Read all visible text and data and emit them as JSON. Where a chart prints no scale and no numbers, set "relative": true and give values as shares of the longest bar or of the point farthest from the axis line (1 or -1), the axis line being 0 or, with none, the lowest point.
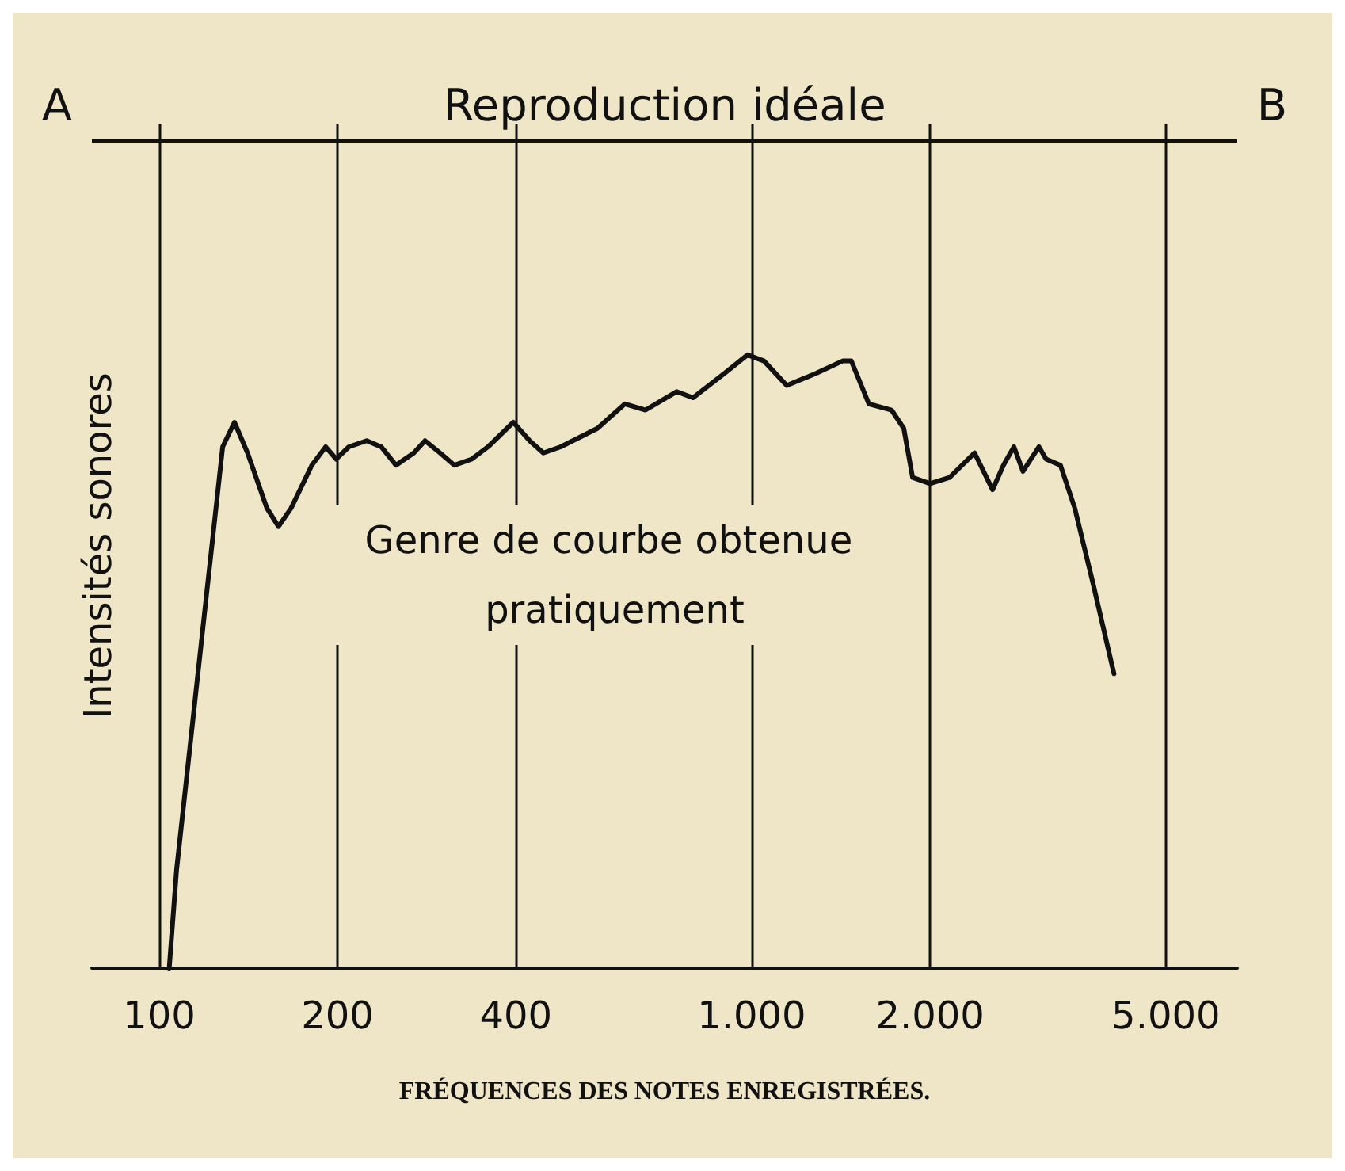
{
  "chart_data": {
    "type": "line",
    "relative": true,
    "xlabel": "FRÉQUENCES DES NOTES ENREGISTRÉES.",
    "ylabel": "Intensités sonores",
    "log": "x",
    "xlim": [
      77,
      6600
    ],
    "xticks": [
      100,
      200,
      400,
      {
        "value": 1000,
        "label": "1.000"
      },
      {
        "value": 2000,
        "label": "2.000"
      },
      {
        "value": 5000,
        "label": "5.000"
      }
    ],
    "grid": "x",
    "marker": "none",
    "line_style": "solid",
    "x": [
      104,
      107,
      119,
      128,
      134,
      141,
      152,
      159,
      167,
      181,
      191,
      199,
      209,
      224,
      237,
      251,
      269,
      281,
      298,
      315,
      337,
      359,
      396,
      422,
      445,
      476,
      549,
      611,
      662,
      747,
      796,
      900,
      984,
      1049,
      1146,
      1286,
      1424,
      1473,
      1577,
      1722,
      1806,
      1869,
      2000,
      2158,
      2378,
      2550,
      2660,
      2771,
      2870,
      3054,
      3140,
      3320,
      3510,
      3762,
      4088
    ],
    "series": [
      {
        "color": "#111111",
        "values": [
          0,
          0.16,
          0.57,
          0.85,
          0.89,
          0.84,
          0.75,
          0.72,
          0.75,
          0.82,
          0.85,
          0.83,
          0.85,
          0.86,
          0.85,
          0.82,
          0.84,
          0.86,
          0.84,
          0.82,
          0.83,
          0.85,
          0.89,
          0.86,
          0.84,
          0.85,
          0.88,
          0.92,
          0.91,
          0.94,
          0.93,
          0.97,
          1.0,
          0.99,
          0.95,
          0.97,
          0.99,
          0.99,
          0.92,
          0.91,
          0.88,
          0.8,
          0.79,
          0.8,
          0.84,
          0.78,
          0.82,
          0.85,
          0.81,
          0.85,
          0.83,
          0.82,
          0.75,
          0.63,
          0.48
        ]
      }
    ],
    "ref_lines": [
      {
        "axis": "y",
        "value": 1.35,
        "label": "Reproduction idéale",
        "color": "#111111"
      }
    ],
    "annotations": [
      {
        "text": "A",
        "x": 77,
        "y": 1.35
      },
      {
        "text": "B",
        "x": 6600,
        "y": 1.35
      },
      "Genre de courbe obtenue pratiquement"
    ]
  }
}
